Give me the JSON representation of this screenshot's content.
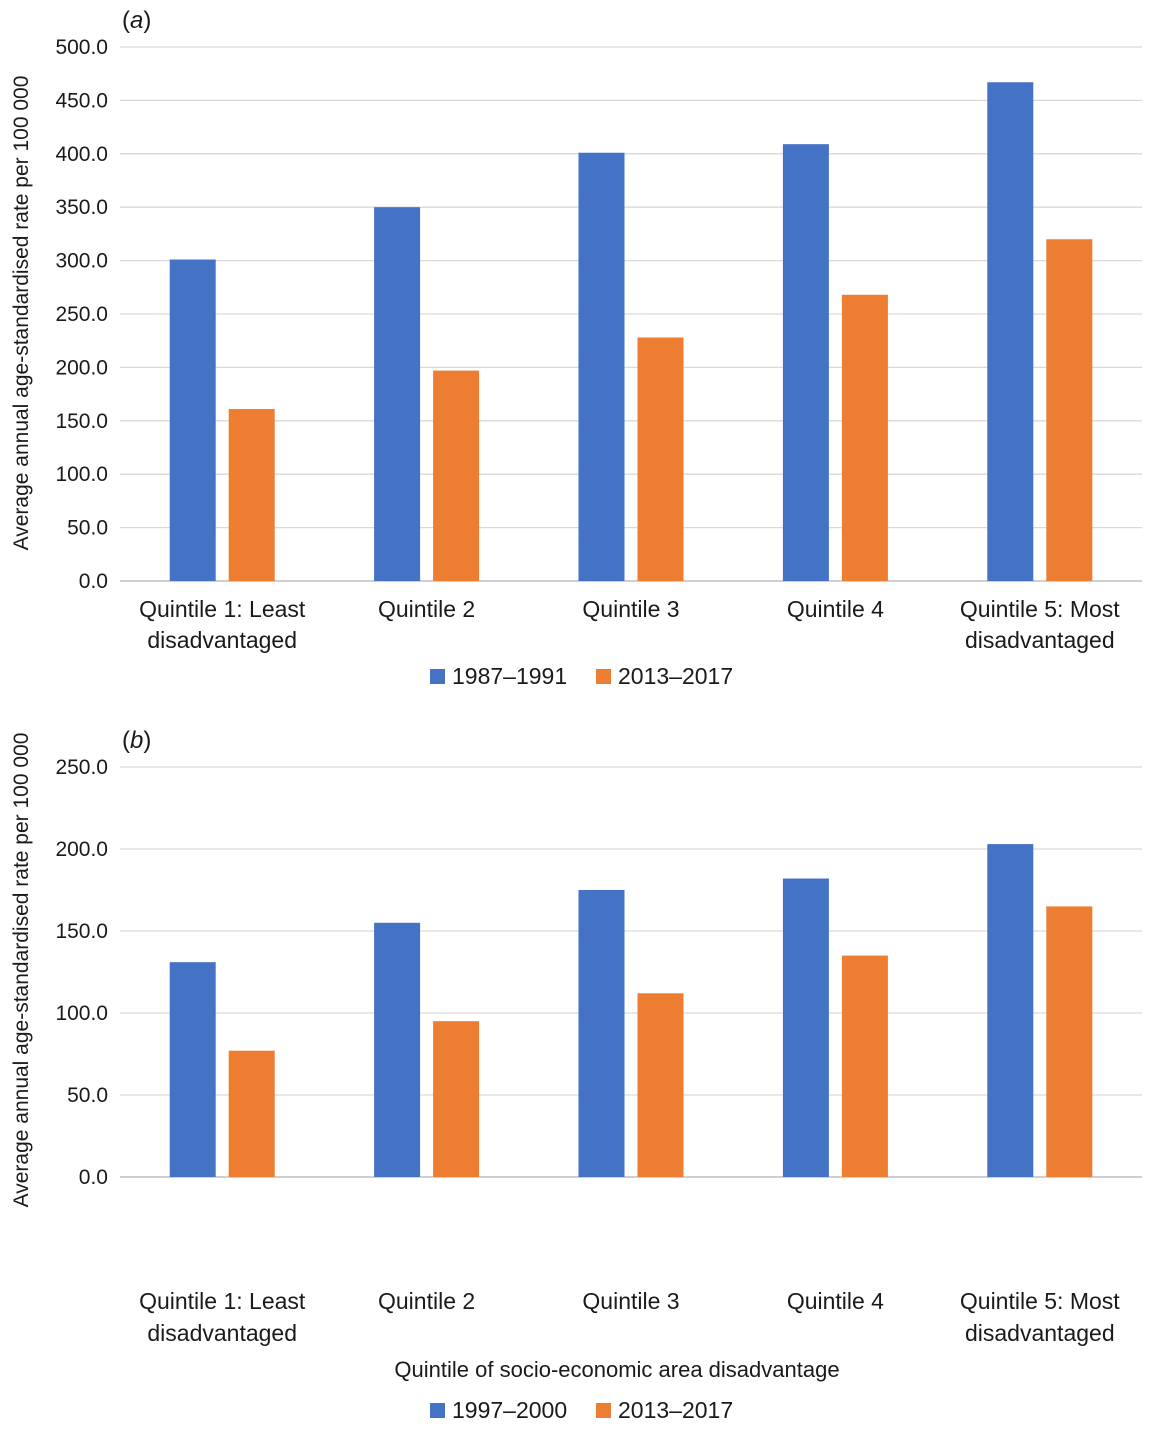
{
  "chart_data": [
    {
      "type": "bar",
      "panel_label": "a",
      "categories": [
        [
          "Quintile 1: Least",
          "disadvantaged"
        ],
        [
          "Quintile 2"
        ],
        [
          "Quintile 3"
        ],
        [
          "Quintile 4"
        ],
        [
          "Quintile 5: Most",
          "disadvantaged"
        ]
      ],
      "series": [
        {
          "name": "1987–1991",
          "color": "#4472c4",
          "values": [
            301,
            350,
            401,
            409,
            467
          ]
        },
        {
          "name": "2013–2017",
          "color": "#ed7d31",
          "values": [
            161,
            197,
            228,
            268,
            320
          ]
        }
      ],
      "ylabel": "Average annual age-standardised rate per 100 000",
      "xlabel": "",
      "ylim": [
        0,
        500
      ],
      "yticks": [
        "0.0",
        "50.0",
        "100.0",
        "150.0",
        "200.0",
        "250.0",
        "300.0",
        "350.0",
        "400.0",
        "450.0",
        "500.0"
      ],
      "grid": true,
      "legend_position": "bottom"
    },
    {
      "type": "bar",
      "panel_label": "b",
      "categories": [
        [
          "Quintile 1: Least",
          "disadvantaged"
        ],
        [
          "Quintile 2"
        ],
        [
          "Quintile 3"
        ],
        [
          "Quintile 4"
        ],
        [
          "Quintile 5: Most",
          "disadvantaged"
        ]
      ],
      "series": [
        {
          "name": "1997–2000",
          "color": "#4472c4",
          "values": [
            131,
            155,
            175,
            182,
            203
          ]
        },
        {
          "name": "2013–2017",
          "color": "#ed7d31",
          "values": [
            77,
            95,
            112,
            135,
            165
          ]
        }
      ],
      "ylabel": "Average annual age-standardised rate per 100 000",
      "xlabel": "Quintile of socio-economic area disadvantage",
      "ylim": [
        0,
        250
      ],
      "yticks": [
        "0.0",
        "50.0",
        "100.0",
        "150.0",
        "200.0",
        "250.0"
      ],
      "grid": true,
      "legend_position": "bottom"
    }
  ]
}
